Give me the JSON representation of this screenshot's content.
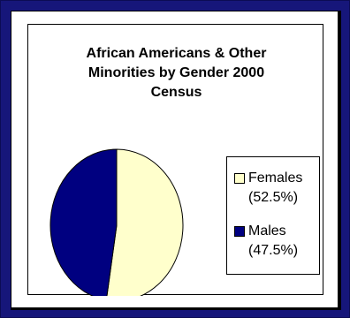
{
  "chart_data": {
    "type": "pie",
    "title": [
      "African Americans & Other",
      "Minorities by Gender 2000",
      "Census"
    ],
    "categories": [
      "Females",
      "Males"
    ],
    "values": [
      52.5,
      47.5
    ],
    "labels": [
      "Females",
      "Males"
    ],
    "percent_labels": [
      "(52.5%)",
      "(47.5%)"
    ],
    "colors": [
      "#ffffcc",
      "#000080"
    ],
    "legend_position": "right"
  }
}
